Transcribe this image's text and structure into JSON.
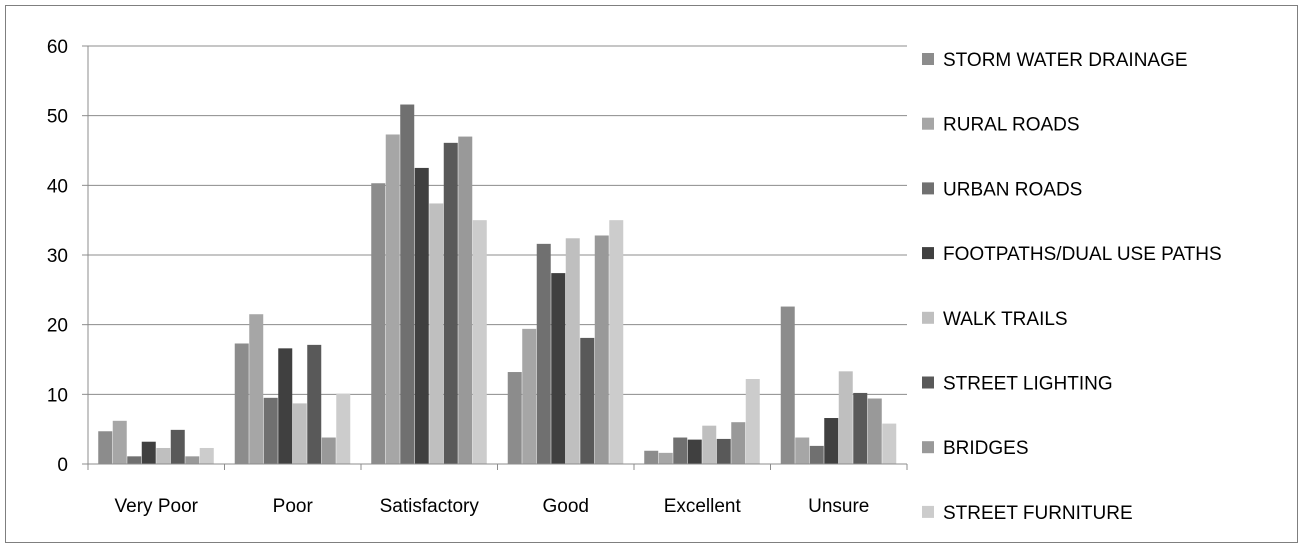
{
  "chart_data": {
    "type": "bar",
    "categories": [
      "Very Poor",
      "Poor",
      "Satisfactory",
      "Good",
      "Excellent",
      "Unsure"
    ],
    "series": [
      {
        "name": "STORM WATER DRAINAGE",
        "color": "#8c8c8c",
        "values": [
          4.7,
          17.3,
          40.3,
          13.2,
          1.9,
          22.6
        ]
      },
      {
        "name": "RURAL ROADS",
        "color": "#a6a6a6",
        "values": [
          6.2,
          21.5,
          47.3,
          19.4,
          1.6,
          3.8
        ]
      },
      {
        "name": "URBAN ROADS",
        "color": "#707070",
        "values": [
          1.1,
          9.5,
          51.6,
          31.6,
          3.8,
          2.6
        ]
      },
      {
        "name": "FOOTPATHS/DUAL USE PATHS",
        "color": "#404040",
        "values": [
          3.2,
          16.6,
          42.5,
          27.4,
          3.5,
          6.6
        ]
      },
      {
        "name": "WALK TRAILS",
        "color": "#bfbfbf",
        "values": [
          2.3,
          8.7,
          37.4,
          32.4,
          5.5,
          13.3
        ]
      },
      {
        "name": "STREET LIGHTING",
        "color": "#595959",
        "values": [
          4.9,
          17.1,
          46.1,
          18.1,
          3.6,
          10.2
        ]
      },
      {
        "name": "BRIDGES",
        "color": "#999999",
        "values": [
          1.1,
          3.8,
          47.0,
          32.8,
          6.0,
          9.4
        ]
      },
      {
        "name": "STREET FURNITURE",
        "color": "#cccccc",
        "values": [
          2.3,
          10.1,
          35.0,
          35.0,
          12.2,
          5.8
        ]
      }
    ],
    "ylim": [
      0,
      60
    ],
    "yticks": [
      0,
      10,
      20,
      30,
      40,
      50,
      60
    ],
    "grid": true,
    "legend": "right"
  }
}
